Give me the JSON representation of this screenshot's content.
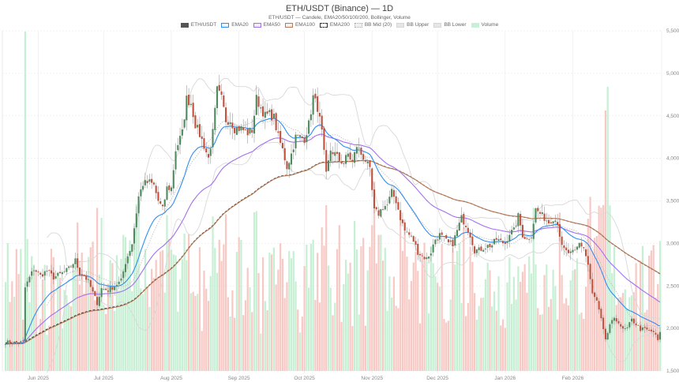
{
  "chart_data": {
    "type": "candlestick",
    "title": "ETH/USDT (Binance) — 1D",
    "subtitle": "ETH/USDT — Candele, EMA20/50/100/200, Bollinger, Volume",
    "legend": [
      {
        "label": "ETH/USDT",
        "kind": "candle",
        "color": "#555555"
      },
      {
        "label": "EMA20",
        "kind": "line",
        "color": "#2e8ff0"
      },
      {
        "label": "EMA50",
        "kind": "line",
        "color": "#a36ff2"
      },
      {
        "label": "EMA100",
        "kind": "line",
        "color": "#b97a55"
      },
      {
        "label": "EMA200",
        "kind": "dashed",
        "color": "#333333"
      },
      {
        "label": "BB Mid (20)",
        "kind": "dotted",
        "color": "#bbbbbb"
      },
      {
        "label": "BB Upper",
        "kind": "line",
        "color": "#d6d6d6"
      },
      {
        "label": "BB Lower",
        "kind": "line",
        "color": "#d6d6d6"
      },
      {
        "label": "Volume",
        "kind": "bar",
        "color": "#c8f0d8"
      }
    ],
    "colors": {
      "up": "#4f8a5e",
      "down": "#c0503c",
      "up_vol": "#c6efd4",
      "down_vol": "#f8c9c4",
      "grid": "#eeeeee"
    },
    "ylim": [
      1500,
      5500
    ],
    "yticks": [
      1500,
      2000,
      2500,
      3000,
      3500,
      4000,
      4500,
      5000,
      5500
    ],
    "ytick_labels": [
      "1,500",
      "2,000",
      "2,500",
      "3,000",
      "3,500",
      "4,000",
      "4,500",
      "5,000",
      "5,500"
    ],
    "x_start": "2025-05-17",
    "x_end": "2026-02-26",
    "xtick_labels": [
      {
        "label": "Jun 2025",
        "day": 15
      },
      {
        "label": "Jul 2025",
        "day": 45
      },
      {
        "label": "Aug 2025",
        "day": 76
      },
      {
        "label": "Sep 2025",
        "day": 107
      },
      {
        "label": "Oct 2025",
        "day": 137
      },
      {
        "label": "Nov 2025",
        "day": 168
      },
      {
        "label": "Dec 2025",
        "day": 198
      },
      {
        "label": "Jan 2026",
        "day": 229
      },
      {
        "label": "Feb 2026",
        "day": 260
      }
    ],
    "close_keypoints": [
      [
        0,
        1840
      ],
      [
        6,
        1830
      ],
      [
        8,
        1845
      ],
      [
        9,
        2480
      ],
      [
        11,
        2600
      ],
      [
        13,
        2700
      ],
      [
        16,
        2620
      ],
      [
        19,
        2680
      ],
      [
        22,
        2600
      ],
      [
        26,
        2650
      ],
      [
        29,
        2700
      ],
      [
        32,
        2800
      ],
      [
        34,
        2650
      ],
      [
        36,
        2620
      ],
      [
        38,
        2550
      ],
      [
        40,
        2420
      ],
      [
        42,
        2300
      ],
      [
        44,
        2470
      ],
      [
        47,
        2450
      ],
      [
        50,
        2500
      ],
      [
        53,
        2560
      ],
      [
        55,
        2780
      ],
      [
        58,
        3000
      ],
      [
        61,
        3550
      ],
      [
        63,
        3700
      ],
      [
        66,
        3720
      ],
      [
        68,
        3680
      ],
      [
        70,
        3500
      ],
      [
        72,
        3400
      ],
      [
        74,
        3650
      ],
      [
        76,
        3650
      ],
      [
        78,
        4100
      ],
      [
        81,
        4300
      ],
      [
        83,
        4700
      ],
      [
        85,
        4650
      ],
      [
        87,
        4400
      ],
      [
        89,
        4280
      ],
      [
        91,
        4150
      ],
      [
        93,
        4000
      ],
      [
        95,
        4300
      ],
      [
        97,
        4800
      ],
      [
        99,
        4700
      ],
      [
        101,
        4450
      ],
      [
        103,
        4450
      ],
      [
        105,
        4350
      ],
      [
        108,
        4350
      ],
      [
        111,
        4300
      ],
      [
        113,
        4330
      ],
      [
        115,
        4700
      ],
      [
        117,
        4600
      ],
      [
        119,
        4500
      ],
      [
        121,
        4520
      ],
      [
        123,
        4480
      ],
      [
        125,
        4250
      ],
      [
        127,
        4100
      ],
      [
        129,
        3900
      ],
      [
        131,
        4050
      ],
      [
        133,
        4250
      ],
      [
        135,
        4250
      ],
      [
        137,
        4230
      ],
      [
        139,
        4400
      ],
      [
        141,
        4720
      ],
      [
        143,
        4600
      ],
      [
        145,
        4300
      ],
      [
        147,
        3800
      ],
      [
        149,
        4100
      ],
      [
        151,
        4050
      ],
      [
        153,
        3980
      ],
      [
        155,
        3950
      ],
      [
        157,
        4050
      ],
      [
        159,
        3950
      ],
      [
        161,
        4150
      ],
      [
        163,
        4050
      ],
      [
        165,
        3980
      ],
      [
        167,
        3850
      ],
      [
        169,
        3380
      ],
      [
        171,
        3350
      ],
      [
        173,
        3430
      ],
      [
        175,
        3450
      ],
      [
        177,
        3600
      ],
      [
        179,
        3500
      ],
      [
        181,
        3300
      ],
      [
        183,
        3150
      ],
      [
        185,
        3100
      ],
      [
        187,
        3030
      ],
      [
        189,
        2900
      ],
      [
        191,
        2850
      ],
      [
        193,
        2820
      ],
      [
        195,
        2900
      ],
      [
        197,
        3050
      ],
      [
        199,
        3100
      ],
      [
        201,
        3050
      ],
      [
        203,
        3000
      ],
      [
        205,
        3000
      ],
      [
        207,
        3150
      ],
      [
        209,
        3300
      ],
      [
        211,
        3220
      ],
      [
        213,
        3100
      ],
      [
        215,
        2920
      ],
      [
        217,
        2920
      ],
      [
        219,
        2950
      ],
      [
        221,
        2970
      ],
      [
        223,
        2980
      ],
      [
        225,
        3050
      ],
      [
        227,
        3020
      ],
      [
        229,
        3000
      ],
      [
        231,
        3120
      ],
      [
        233,
        3150
      ],
      [
        235,
        3320
      ],
      [
        237,
        3100
      ],
      [
        239,
        3050
      ],
      [
        241,
        3100
      ],
      [
        243,
        3400
      ],
      [
        245,
        3350
      ],
      [
        247,
        3300
      ],
      [
        249,
        3250
      ],
      [
        251,
        3300
      ],
      [
        253,
        3250
      ],
      [
        255,
        2950
      ],
      [
        257,
        2900
      ],
      [
        259,
        2880
      ],
      [
        261,
        2900
      ],
      [
        263,
        3000
      ],
      [
        265,
        2950
      ],
      [
        267,
        2750
      ],
      [
        269,
        2400
      ],
      [
        271,
        2320
      ],
      [
        273,
        2100
      ],
      [
        275,
        1850
      ],
      [
        277,
        2050
      ],
      [
        279,
        2100
      ],
      [
        281,
        2080
      ],
      [
        283,
        1980
      ],
      [
        285,
        2000
      ],
      [
        287,
        2100
      ],
      [
        289,
        2050
      ],
      [
        291,
        1990
      ],
      [
        293,
        1990
      ],
      [
        295,
        1970
      ],
      [
        297,
        1960
      ],
      [
        299,
        1860
      ],
      [
        300,
        1940
      ]
    ],
    "volume_scale_note": "Volume bars overlay bottom of plot; heights relative (0-1)."
  },
  "axis": {
    "right_labels_color": "#999999"
  }
}
